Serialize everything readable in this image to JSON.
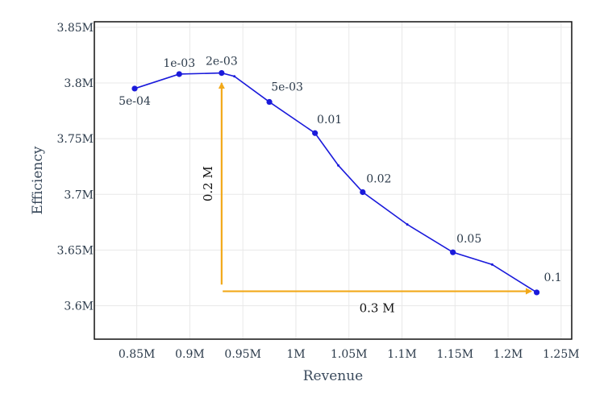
{
  "chart_data": {
    "type": "line",
    "xlabel": "Revenue",
    "ylabel": "Efficiency",
    "xlim": [
      810000,
      1260000
    ],
    "ylim": [
      3570000,
      3855000
    ],
    "x_ticks": [
      850000,
      900000,
      950000,
      1000000,
      1050000,
      1100000,
      1150000,
      1200000,
      1250000
    ],
    "x_tick_labels": [
      "0.85M",
      "0.9M",
      "0.95M",
      "1M",
      "1.05M",
      "1.1M",
      "1.15M",
      "1.2M",
      "1.25M"
    ],
    "y_ticks": [
      3600000,
      3650000,
      3700000,
      3750000,
      3800000,
      3850000
    ],
    "y_tick_labels": [
      "3.6M",
      "3.65M",
      "3.7M",
      "3.75M",
      "3.8M",
      "3.85M"
    ],
    "grid": true,
    "line_color": "#1a1adb",
    "arrow_color": "#f2a91a",
    "series": [
      {
        "x": [
          848000,
          890000,
          930000,
          942000,
          975000,
          1018000,
          1040000,
          1063000,
          1105000,
          1148000,
          1185000,
          1227000
        ],
        "y": [
          3795000,
          3808000,
          3809000,
          3806000,
          3783000,
          3755000,
          3726000,
          3702000,
          3673000,
          3648000,
          3637000,
          3612000
        ],
        "point_labels": [
          "5e-04",
          "1e-03",
          "2e-03",
          "",
          "5e-03",
          "0.01",
          "",
          "0.02",
          "",
          "0.05",
          "",
          "0.1"
        ],
        "marker_major": [
          true,
          true,
          true,
          false,
          true,
          true,
          false,
          true,
          false,
          true,
          false,
          true
        ]
      }
    ],
    "annotations": [
      {
        "label": "0.2 M",
        "from": [
          930000,
          3619000
        ],
        "to": [
          930000,
          3800000
        ],
        "direction": "vertical"
      },
      {
        "label": "0.3 M",
        "from": [
          931000,
          3613000
        ],
        "to": [
          1222000,
          3613000
        ],
        "direction": "horizontal"
      }
    ]
  }
}
